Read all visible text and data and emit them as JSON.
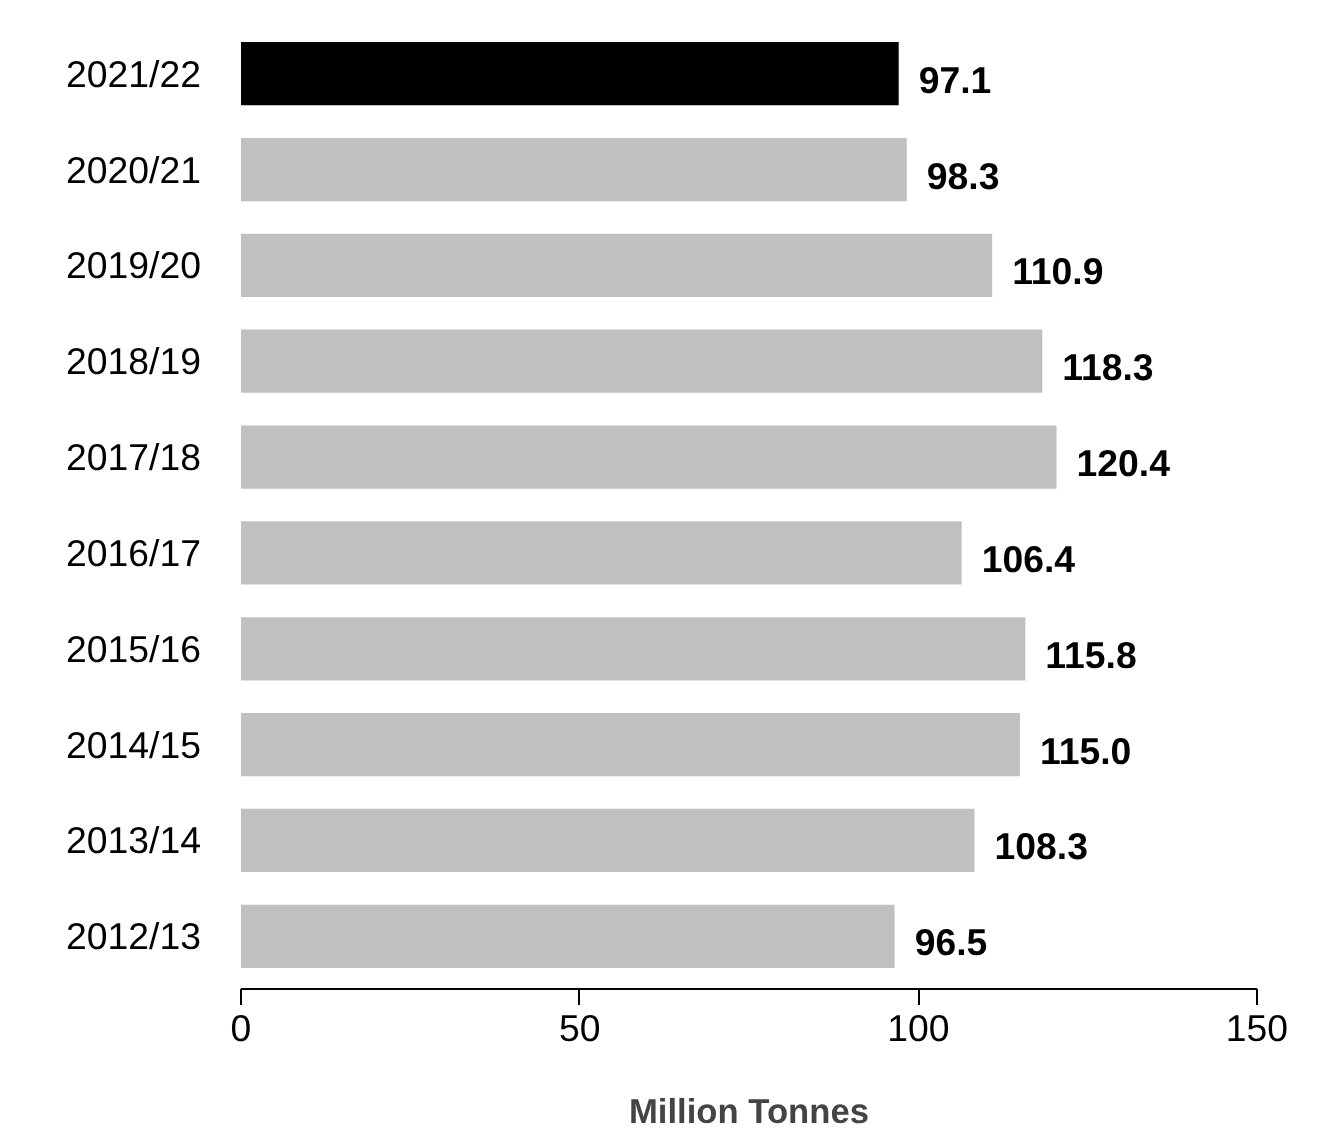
{
  "chart_data": {
    "type": "bar",
    "orientation": "horizontal",
    "xlabel": "Million Tonnes",
    "categories": [
      "2021/22",
      "2020/21",
      "2019/20",
      "2018/19",
      "2017/18",
      "2016/17",
      "2015/16",
      "2014/15",
      "2013/14",
      "2012/13"
    ],
    "values": [
      97.1,
      98.3,
      110.9,
      118.3,
      120.4,
      106.4,
      115.8,
      115.0,
      108.3,
      96.5
    ],
    "colors": [
      "#000000",
      "#c0c0c0",
      "#c0c0c0",
      "#c0c0c0",
      "#c0c0c0",
      "#c0c0c0",
      "#c0c0c0",
      "#c0c0c0",
      "#c0c0c0",
      "#c0c0c0"
    ],
    "value_labels": [
      "97.1",
      "98.3",
      "110.9",
      "118.3",
      "120.4",
      "106.4",
      "115.8",
      "115.0",
      "108.3",
      "96.5"
    ],
    "xlim": [
      0,
      150
    ],
    "xticks": [
      0,
      50,
      100,
      150
    ],
    "grid": false
  }
}
